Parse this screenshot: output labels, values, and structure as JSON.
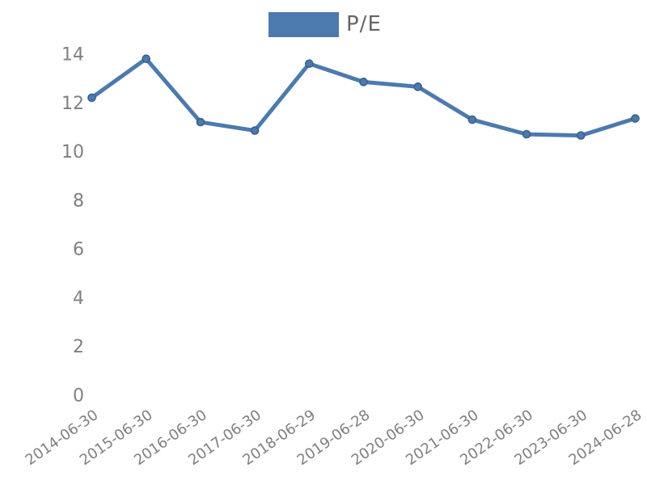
{
  "legend": {
    "label": "P/E"
  },
  "chart_data": {
    "type": "line",
    "title": "",
    "xlabel": "",
    "ylabel": "",
    "categories": [
      "2014-06-30",
      "2015-06-30",
      "2016-06-30",
      "2017-06-30",
      "2018-06-29",
      "2019-06-28",
      "2020-06-30",
      "2021-06-30",
      "2022-06-30",
      "2023-06-30",
      "2024-06-28"
    ],
    "series": [
      {
        "name": "P/E",
        "values": [
          12.2,
          13.8,
          11.2,
          10.85,
          13.6,
          12.85,
          12.65,
          11.3,
          10.7,
          10.65,
          11.35
        ]
      }
    ],
    "yticks": [
      0,
      2,
      4,
      6,
      8,
      10,
      12,
      14
    ],
    "ylim": [
      0,
      14.5
    ],
    "grid": false,
    "axis_lines": false,
    "legend_position": "top-center",
    "x_tick_rotation_deg": -35,
    "colors": {
      "line": "#4D7AAE",
      "marker_fill": "#4D7AAE",
      "marker_edge": "#3A618C",
      "tick_label": "#808080",
      "legend_text": "#666666",
      "background": "#ffffff"
    }
  }
}
